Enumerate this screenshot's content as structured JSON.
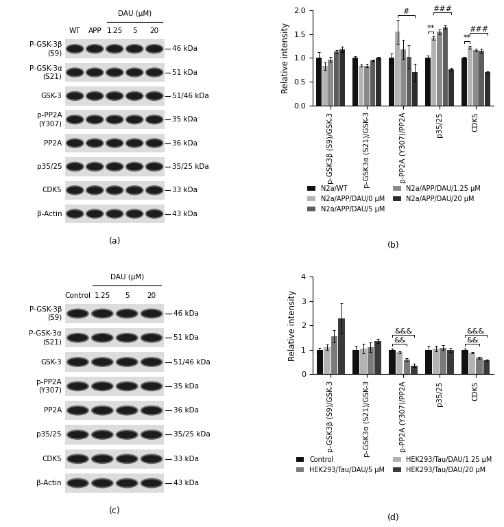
{
  "blots": [
    {
      "caption": "(a)",
      "lanes": [
        "WT",
        "APP",
        "1.25",
        "5",
        "20"
      ],
      "group_label": "DAU (μM)",
      "group_lanes": [
        "1.25",
        "5",
        "20"
      ],
      "rows": [
        {
          "protein": "P-GSK-3β (S9)",
          "kda": "46 kDa"
        },
        {
          "protein": "P-GSK-3α (S21)",
          "kda": "51 kDa"
        },
        {
          "protein": "GSK-3",
          "kda": "51/46 kDa"
        },
        {
          "protein": "p-PP2A (Y307)",
          "kda": "35 kDa"
        },
        {
          "protein": "PP2A",
          "kda": "36 kDa"
        },
        {
          "protein": "p35/25",
          "kda": "35/25 kDa"
        },
        {
          "protein": "CDK5",
          "kda": "33 kDa"
        },
        {
          "protein": "β-Actin",
          "kda": "43 kDa"
        }
      ]
    },
    {
      "caption": "(c)",
      "lanes": [
        "Control",
        "1.25",
        "5",
        "20"
      ],
      "group_label": "DAU (μM)",
      "group_lanes": [
        "1.25",
        "5",
        "20"
      ],
      "rows": [
        {
          "protein": "P-GSK-3β (S9)",
          "kda": "46 kDa"
        },
        {
          "protein": "P-GSK-3α (S21)",
          "kda": "51 kDa"
        },
        {
          "protein": "GSK-3",
          "kda": "51/46 kDa"
        },
        {
          "protein": "p-PP2A (Y307)",
          "kda": "35 kDa"
        },
        {
          "protein": "PP2A",
          "kda": "36 kDa"
        },
        {
          "protein": "p35/25",
          "kda": "35/25 kDa"
        },
        {
          "protein": "CDK5",
          "kda": "33 kDa"
        },
        {
          "protein": "β-Actin",
          "kda": "43 kDa"
        }
      ]
    }
  ],
  "chart_data": [
    {
      "type": "bar",
      "caption": "(b)",
      "y_label": "Relative intensity",
      "categories": [
        "p-GSK3β (S9)/GSK-3",
        "p-GSK3α (S21)/GSK-3",
        "p-PP2A (Y307)/PP2A",
        "p35/25",
        "CDK5"
      ],
      "series": [
        {
          "name": "N2a/WT",
          "color": "#111111",
          "values": [
            1.0,
            1.0,
            1.0,
            1.0,
            1.0
          ],
          "errors": [
            0.12,
            0.04,
            0.1,
            0.05,
            0.02
          ]
        },
        {
          "name": "N2a/APP/DAU/0 μM",
          "color": "#b3b3b3",
          "values": [
            0.83,
            0.84,
            1.55,
            1.42,
            1.22
          ],
          "errors": [
            0.08,
            0.02,
            0.25,
            0.04,
            0.03
          ]
        },
        {
          "name": "N2a/APP/DAU/1.25 μM",
          "color": "#8a8a8a",
          "values": [
            0.97,
            0.84,
            1.18,
            1.55,
            1.17
          ],
          "errors": [
            0.05,
            0.03,
            0.2,
            0.05,
            0.03
          ]
        },
        {
          "name": "N2a/APP/DAU/5 μM",
          "color": "#5c5c5c",
          "values": [
            1.13,
            0.95,
            1.02,
            1.65,
            1.15
          ],
          "errors": [
            0.04,
            0.02,
            0.25,
            0.03,
            0.04
          ]
        },
        {
          "name": "N2a/APP/DAU/20 μM",
          "color": "#2e2e2e",
          "values": [
            1.18,
            1.0,
            0.7,
            0.76,
            0.7
          ],
          "errors": [
            0.06,
            0.02,
            0.18,
            0.03,
            0.02
          ]
        }
      ],
      "legend_order": [
        "N2a/WT",
        "N2a/APP/DAU/0 μM",
        "N2a/APP/DAU/5 μM",
        "N2a/APP/DAU/1.25 μM",
        "N2a/APP/DAU/20 μM"
      ],
      "legend": "bottom",
      "ylim": [
        0,
        2.0
      ],
      "yticks": [
        {
          "value": 0,
          "label": "0.0"
        },
        {
          "value": 0.5,
          "label": "0.5"
        },
        {
          "value": 1.0,
          "label": "1.0"
        },
        {
          "value": 1.5,
          "label": "1.5"
        },
        {
          "value": 2.0,
          "label": "2.0"
        }
      ],
      "annotations": [
        {
          "category": "p-PP2A (Y307)/PP2A",
          "from": "N2a/APP/DAU/0 μM",
          "to": "N2a/APP/DAU/20 μM",
          "label": "#"
        },
        {
          "category": "p35/25",
          "from": "N2a/WT",
          "to": "N2a/APP/DAU/0 μM",
          "label": "**"
        },
        {
          "category": "p35/25",
          "from": "N2a/APP/DAU/0 μM",
          "to": "N2a/APP/DAU/20 μM",
          "label": "###"
        },
        {
          "category": "CDK5",
          "from": "N2a/WT",
          "to": "N2a/APP/DAU/0 μM",
          "label": "**"
        },
        {
          "category": "CDK5",
          "from": "N2a/APP/DAU/0 μM",
          "to": "N2a/APP/DAU/20 μM",
          "label": "###"
        }
      ]
    },
    {
      "type": "bar",
      "caption": "(d)",
      "y_label": "Relative intensity",
      "categories": [
        "p-GSK3β (S9)/GSK-3",
        "p-GSK3α (S21)/GSK-3",
        "p-PP2A (Y307)/PP2A",
        "p35/25",
        "CDK5"
      ],
      "series": [
        {
          "name": "Control",
          "color": "#111111",
          "values": [
            1.0,
            1.0,
            1.0,
            1.0,
            1.0
          ],
          "errors": [
            0.08,
            0.15,
            0.05,
            0.15,
            0.04
          ]
        },
        {
          "name": "HEK293/Tau/DAU/1.25 μM",
          "color": "#b3b3b3",
          "values": [
            1.1,
            1.05,
            0.9,
            1.05,
            0.87
          ],
          "errors": [
            0.12,
            0.2,
            0.04,
            0.12,
            0.03
          ]
        },
        {
          "name": "HEK293/Tau/DAU/5 μM",
          "color": "#7a7a7a",
          "values": [
            1.55,
            1.1,
            0.6,
            1.08,
            0.68
          ],
          "errors": [
            0.25,
            0.2,
            0.06,
            0.1,
            0.04
          ]
        },
        {
          "name": "HEK293/Tau/DAU/20 μM",
          "color": "#3a3a3a",
          "values": [
            2.28,
            1.35,
            0.35,
            1.0,
            0.57
          ],
          "errors": [
            0.62,
            0.08,
            0.07,
            0.08,
            0.02
          ]
        }
      ],
      "legend_order": [
        "Control",
        "HEK293/Tau/DAU/5 μM",
        "HEK293/Tau/DAU/1.25 μM",
        "HEK293/Tau/DAU/20 μM"
      ],
      "legend": "bottom",
      "ylim": [
        0,
        4
      ],
      "yticks": [
        0,
        1,
        2,
        3,
        4
      ],
      "annotations": [
        {
          "category": "p-PP2A (Y307)/PP2A",
          "from": "Control",
          "to": "HEK293/Tau/DAU/5 μM",
          "label": "&&"
        },
        {
          "category": "p-PP2A (Y307)/PP2A",
          "from": "Control",
          "to": "HEK293/Tau/DAU/20 μM",
          "label": "&&&"
        },
        {
          "category": "CDK5",
          "from": "Control",
          "to": "HEK293/Tau/DAU/5 μM",
          "label": "&&"
        },
        {
          "category": "CDK5",
          "from": "Control",
          "to": "HEK293/Tau/DAU/20 μM",
          "label": "&&&"
        }
      ]
    }
  ]
}
